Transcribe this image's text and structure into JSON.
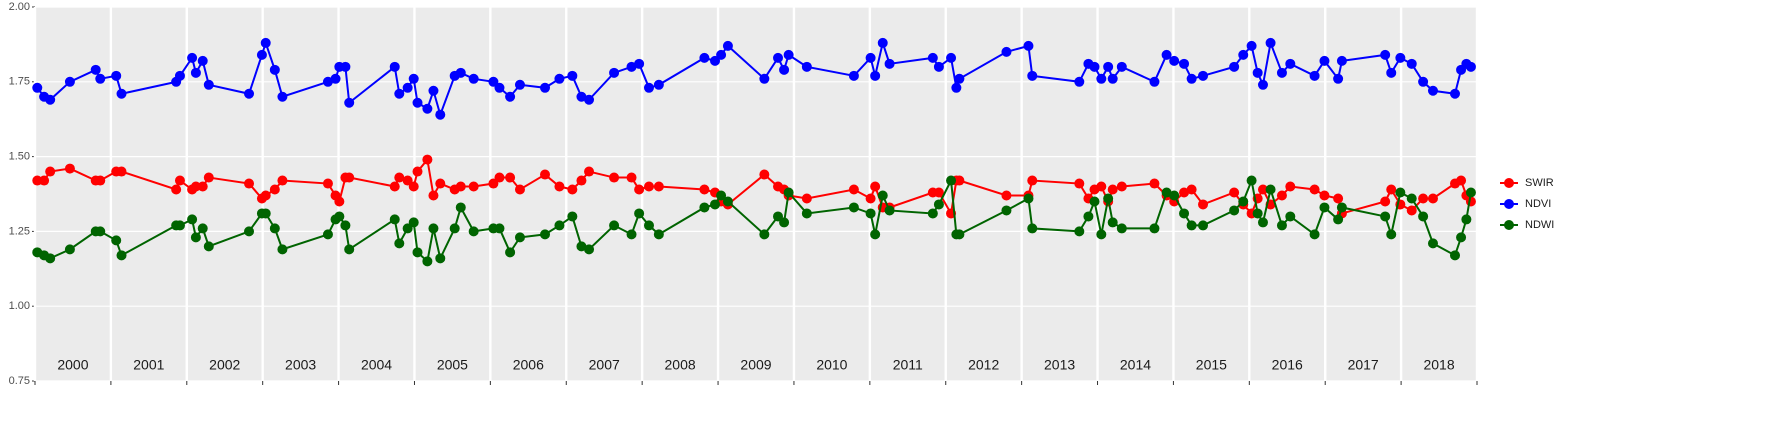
{
  "chart_data": {
    "type": "line",
    "x": [
      2000.03,
      2000.12,
      2000.2,
      2000.46,
      2000.8,
      2000.86,
      2001.07,
      2001.14,
      2001.86,
      2001.91,
      2002.07,
      2002.12,
      2002.21,
      2002.29,
      2002.82,
      2002.99,
      2003.04,
      2003.16,
      2003.26,
      2003.86,
      2003.96,
      2004.01,
      2004.09,
      2004.14,
      2004.74,
      2004.8,
      2004.91,
      2004.99,
      2005.04,
      2005.17,
      2005.25,
      2005.34,
      2005.53,
      2005.61,
      2005.78,
      2006.04,
      2006.12,
      2006.26,
      2006.39,
      2006.72,
      2006.91,
      2007.08,
      2007.2,
      2007.3,
      2007.63,
      2007.86,
      2007.96,
      2008.09,
      2008.22,
      2008.82,
      2008.96,
      2009.04,
      2009.13,
      2009.61,
      2009.79,
      2009.87,
      2009.93,
      2010.17,
      2010.79,
      2011.01,
      2011.07,
      2011.17,
      2011.26,
      2011.83,
      2011.91,
      2012.07,
      2012.14,
      2012.18,
      2012.8,
      2013.09,
      2013.14,
      2013.76,
      2013.88,
      2013.96,
      2014.05,
      2014.14,
      2014.2,
      2014.32,
      2014.75,
      2014.91,
      2015.01,
      2015.14,
      2015.24,
      2015.39,
      2015.8,
      2015.92,
      2016.03,
      2016.11,
      2016.18,
      2016.28,
      2016.43,
      2016.54,
      2016.86,
      2016.99,
      2017.17,
      2017.22,
      2017.79,
      2017.87,
      2017.99,
      2018.14,
      2018.29,
      2018.42,
      2018.71,
      2018.79,
      2018.86,
      2018.92
    ],
    "series": [
      {
        "name": "SWIR",
        "color": "#ff0000",
        "values": [
          1.42,
          1.42,
          1.45,
          1.46,
          1.42,
          1.42,
          1.45,
          1.45,
          1.39,
          1.42,
          1.39,
          1.4,
          1.4,
          1.43,
          1.41,
          1.36,
          1.37,
          1.39,
          1.42,
          1.41,
          1.37,
          1.35,
          1.43,
          1.43,
          1.4,
          1.43,
          1.42,
          1.4,
          1.45,
          1.49,
          1.37,
          1.41,
          1.39,
          1.4,
          1.4,
          1.41,
          1.43,
          1.43,
          1.39,
          1.44,
          1.4,
          1.39,
          1.42,
          1.45,
          1.43,
          1.43,
          1.39,
          1.4,
          1.4,
          1.39,
          1.38,
          1.35,
          1.34,
          1.44,
          1.4,
          1.39,
          1.37,
          1.36,
          1.39,
          1.36,
          1.4,
          1.33,
          1.33,
          1.38,
          1.38,
          1.31,
          1.42,
          1.42,
          1.37,
          1.37,
          1.42,
          1.41,
          1.36,
          1.39,
          1.4,
          1.35,
          1.39,
          1.4,
          1.41,
          1.37,
          1.35,
          1.38,
          1.39,
          1.34,
          1.38,
          1.34,
          1.31,
          1.36,
          1.39,
          1.34,
          1.37,
          1.4,
          1.39,
          1.37,
          1.36,
          1.31,
          1.35,
          1.39,
          1.34,
          1.32,
          1.36,
          1.36,
          1.41,
          1.42,
          1.37,
          1.35
        ]
      },
      {
        "name": "NDVI",
        "color": "#0000ff",
        "values": [
          1.73,
          1.7,
          1.69,
          1.75,
          1.79,
          1.76,
          1.77,
          1.71,
          1.75,
          1.77,
          1.83,
          1.78,
          1.82,
          1.74,
          1.71,
          1.84,
          1.88,
          1.79,
          1.7,
          1.75,
          1.76,
          1.8,
          1.8,
          1.68,
          1.8,
          1.71,
          1.73,
          1.76,
          1.68,
          1.66,
          1.72,
          1.64,
          1.77,
          1.78,
          1.76,
          1.75,
          1.73,
          1.7,
          1.74,
          1.73,
          1.76,
          1.77,
          1.7,
          1.69,
          1.78,
          1.8,
          1.81,
          1.73,
          1.74,
          1.83,
          1.82,
          1.84,
          1.87,
          1.76,
          1.83,
          1.79,
          1.84,
          1.8,
          1.77,
          1.83,
          1.77,
          1.88,
          1.81,
          1.83,
          1.8,
          1.83,
          1.73,
          1.76,
          1.85,
          1.87,
          1.77,
          1.75,
          1.81,
          1.8,
          1.76,
          1.8,
          1.76,
          1.8,
          1.75,
          1.84,
          1.82,
          1.81,
          1.76,
          1.77,
          1.8,
          1.84,
          1.87,
          1.78,
          1.74,
          1.88,
          1.78,
          1.81,
          1.77,
          1.82,
          1.76,
          1.82,
          1.84,
          1.78,
          1.83,
          1.81,
          1.75,
          1.72,
          1.71,
          1.79,
          1.81,
          1.8
        ]
      },
      {
        "name": "NDWI",
        "color": "#006400",
        "values": [
          1.18,
          1.17,
          1.16,
          1.19,
          1.25,
          1.25,
          1.22,
          1.17,
          1.27,
          1.27,
          1.29,
          1.23,
          1.26,
          1.2,
          1.25,
          1.31,
          1.31,
          1.26,
          1.19,
          1.24,
          1.29,
          1.3,
          1.27,
          1.19,
          1.29,
          1.21,
          1.26,
          1.28,
          1.18,
          1.15,
          1.26,
          1.16,
          1.26,
          1.33,
          1.25,
          1.26,
          1.26,
          1.18,
          1.23,
          1.24,
          1.27,
          1.3,
          1.2,
          1.19,
          1.27,
          1.24,
          1.31,
          1.27,
          1.24,
          1.33,
          1.34,
          1.37,
          1.35,
          1.24,
          1.3,
          1.28,
          1.38,
          1.31,
          1.33,
          1.31,
          1.24,
          1.37,
          1.32,
          1.31,
          1.34,
          1.42,
          1.24,
          1.24,
          1.32,
          1.36,
          1.26,
          1.25,
          1.3,
          1.35,
          1.24,
          1.36,
          1.28,
          1.26,
          1.26,
          1.38,
          1.37,
          1.31,
          1.27,
          1.27,
          1.32,
          1.35,
          1.42,
          1.31,
          1.28,
          1.39,
          1.27,
          1.3,
          1.24,
          1.33,
          1.29,
          1.33,
          1.3,
          1.24,
          1.38,
          1.36,
          1.3,
          1.21,
          1.17,
          1.23,
          1.29,
          1.38
        ]
      }
    ],
    "xlim": [
      2000,
      2019
    ],
    "xticks": [
      2000,
      2001,
      2002,
      2003,
      2004,
      2005,
      2006,
      2007,
      2008,
      2009,
      2010,
      2011,
      2012,
      2013,
      2014,
      2015,
      2016,
      2017,
      2018,
      2019
    ],
    "ylim": [
      0.75,
      2.0
    ],
    "yticks": [
      {
        "value": 0.75,
        "label": "0.75"
      },
      {
        "value": 1.0,
        "label": "1.00"
      },
      {
        "value": 1.25,
        "label": "1.25"
      },
      {
        "value": 1.5,
        "label": "1.50"
      },
      {
        "value": 1.75,
        "label": "1.75"
      },
      {
        "value": 2.0,
        "label": "2.00"
      }
    ],
    "year_labels": [
      "2000",
      "2001",
      "2002",
      "2003",
      "2004",
      "2005",
      "2006",
      "2007",
      "2008",
      "2009",
      "2010",
      "2011",
      "2012",
      "2013",
      "2014",
      "2015",
      "2016",
      "2017",
      "2018"
    ],
    "grid": true,
    "legend_position": "right"
  }
}
